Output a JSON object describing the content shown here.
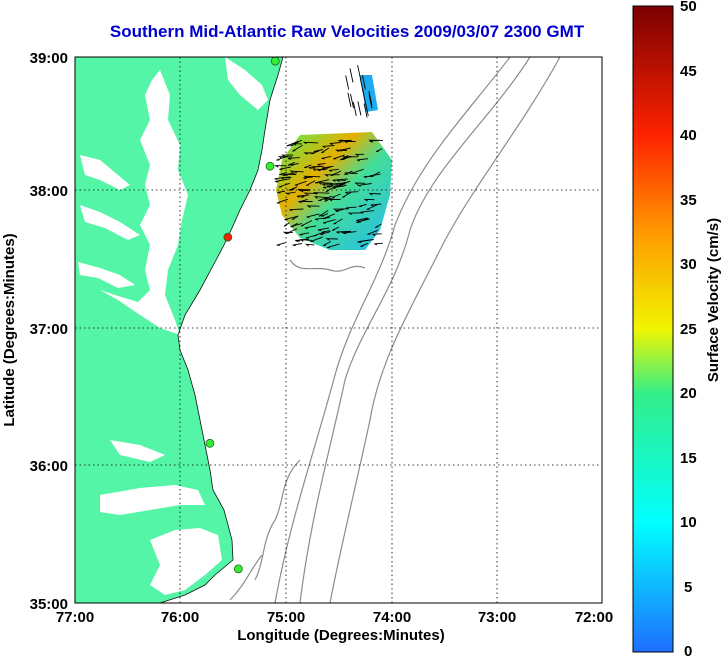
{
  "title": "Southern Mid-Atlantic Raw Velocities 2009/03/07 2300 GMT",
  "x_axis": {
    "label": "Longitude (Degrees:Minutes)",
    "ticks": [
      "77:00",
      "76:00",
      "75:00",
      "74:00",
      "73:00",
      "72:00"
    ]
  },
  "y_axis": {
    "label": "Latitude (Degrees:Minutes)",
    "ticks": [
      "39:00",
      "38:00",
      "37:00",
      "36:00",
      "35:00"
    ]
  },
  "colorbar": {
    "label": "Surface Velocity (cm/s)",
    "ticks": [
      "50",
      "45",
      "40",
      "35",
      "30",
      "25",
      "20",
      "15",
      "10",
      "5",
      "0"
    ],
    "min": 0,
    "max": 50
  },
  "colors": {
    "land": "#55f5a8",
    "bathymetry": "#8c8c8c",
    "title": "#0000cc",
    "station_active": "#33ee33",
    "station_alert": "#ee2200"
  },
  "chart_data": {
    "type": "map",
    "xlim": [
      -77,
      -72
    ],
    "ylim": [
      35,
      39
    ],
    "grid": true,
    "stations": [
      {
        "lon": -75.1,
        "lat": 38.97,
        "status": "active"
      },
      {
        "lon": -75.15,
        "lat": 38.2,
        "status": "active"
      },
      {
        "lon": -75.55,
        "lat": 37.68,
        "status": "alert"
      },
      {
        "lon": -75.72,
        "lat": 36.17,
        "status": "active"
      },
      {
        "lon": -75.45,
        "lat": 35.25,
        "status": "active"
      }
    ]
  }
}
